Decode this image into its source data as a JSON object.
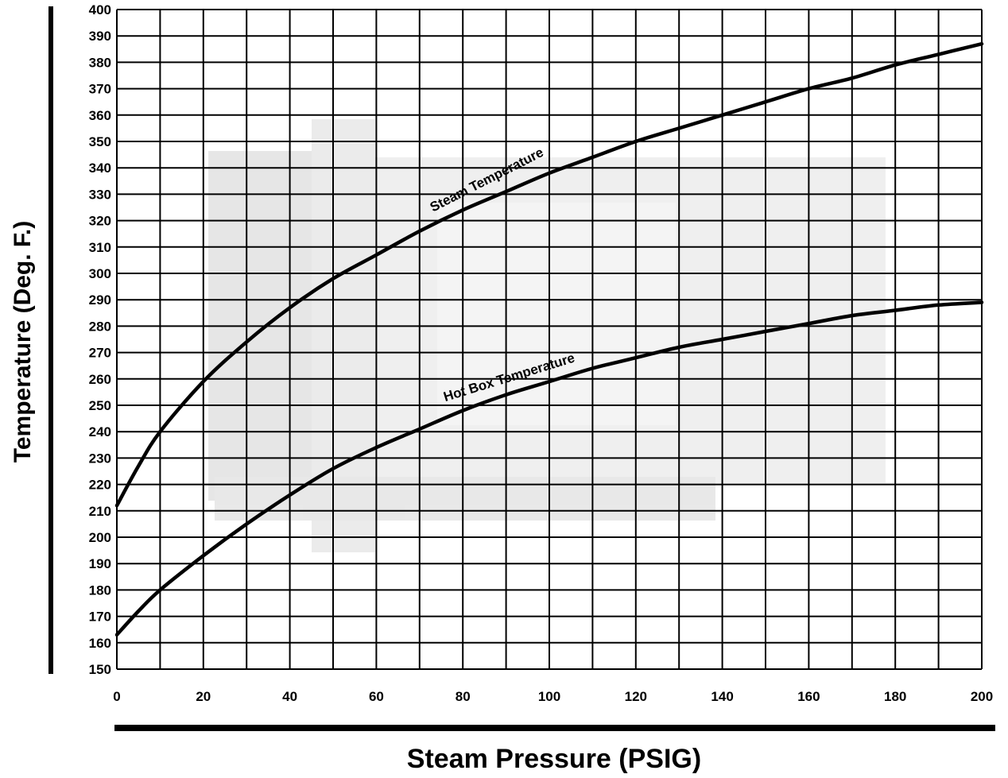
{
  "chart_data": {
    "type": "line",
    "title": "",
    "xlabel": "Steam Pressure (PSIG)",
    "ylabel": "Temperature (Deg. F.)",
    "xlim": [
      0,
      200
    ],
    "ylim": [
      150,
      400
    ],
    "x_ticks": [
      0,
      20,
      40,
      60,
      80,
      100,
      120,
      140,
      160,
      180,
      200
    ],
    "x_gridlines": [
      0,
      10,
      20,
      30,
      40,
      50,
      60,
      70,
      80,
      90,
      100,
      110,
      120,
      130,
      140,
      150,
      160,
      170,
      180,
      190,
      200
    ],
    "y_ticks": [
      150,
      160,
      170,
      180,
      190,
      200,
      210,
      220,
      230,
      240,
      250,
      260,
      270,
      280,
      290,
      300,
      310,
      320,
      330,
      340,
      350,
      360,
      370,
      380,
      390,
      400
    ],
    "grid": true,
    "legend": "none",
    "series": [
      {
        "name": "Steam Temperature",
        "color": "#000000",
        "x": [
          0,
          5,
          10,
          20,
          30,
          40,
          50,
          60,
          70,
          80,
          90,
          100,
          110,
          120,
          130,
          140,
          150,
          160,
          170,
          180,
          190,
          200
        ],
        "y": [
          212,
          227,
          240,
          259,
          274,
          287,
          298,
          307,
          316,
          324,
          331,
          338,
          344,
          350,
          355,
          360,
          365,
          370,
          374,
          379,
          383,
          387
        ]
      },
      {
        "name": "Hot Box Temperature",
        "color": "#000000",
        "x": [
          0,
          5,
          10,
          20,
          30,
          40,
          50,
          60,
          70,
          80,
          90,
          100,
          110,
          120,
          130,
          140,
          150,
          160,
          170,
          180,
          190,
          200
        ],
        "y": [
          163,
          172,
          180,
          193,
          205,
          216,
          226,
          234,
          241,
          248,
          254,
          259,
          264,
          268,
          272,
          275,
          278,
          281,
          284,
          286,
          288,
          289
        ]
      }
    ],
    "annotations": [
      {
        "text": "Steam Temperature",
        "x": 86,
        "y": 334,
        "angle": -27
      },
      {
        "text": "Hot Box Temperature",
        "x": 91,
        "y": 259,
        "angle": -17
      }
    ]
  }
}
